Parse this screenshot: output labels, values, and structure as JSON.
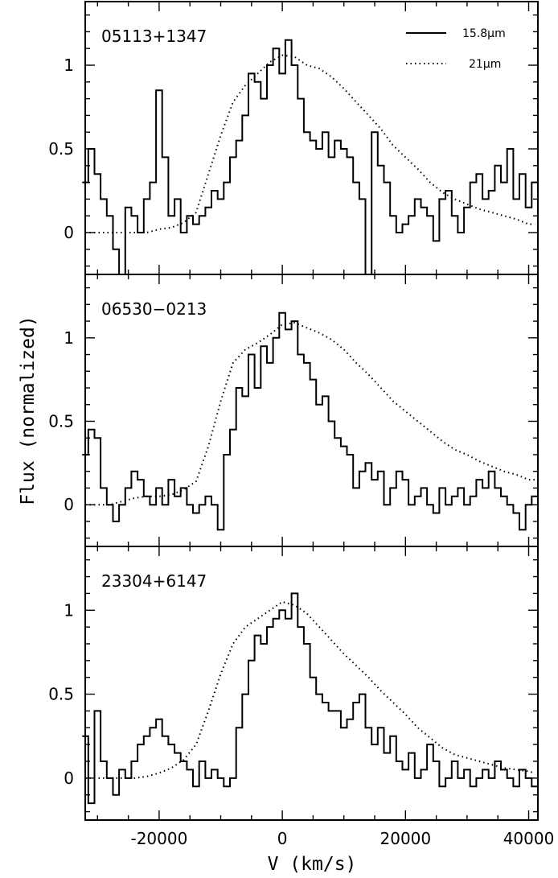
{
  "chart_data": {
    "type": "line",
    "xlabel": "V (km/s)",
    "ylabel": "Flux (normalized)",
    "xlim": [
      -32000,
      41500
    ],
    "ylim": [
      -0.25,
      1.38
    ],
    "x_ticks": [
      "-20000",
      "0",
      "20000",
      "40000"
    ],
    "y_ticks": [
      "0",
      "0.5",
      "1"
    ],
    "legend": {
      "position": "top-right",
      "entries": [
        "15.8μm",
        "21μm"
      ]
    },
    "panels": [
      {
        "name": "05113+1347",
        "series": [
          {
            "name": "15.8μm",
            "style": "solid-step",
            "x": [
              -32000,
              -31000,
              -30000,
              -29000,
              -28000,
              -27000,
              -26000,
              -25000,
              -24000,
              -23000,
              -22000,
              -21000,
              -20000,
              -19000,
              -18000,
              -17000,
              -16000,
              -15000,
              -14000,
              -13000,
              -12000,
              -11000,
              -10000,
              -9000,
              -8000,
              -7000,
              -6000,
              -5000,
              -4000,
              -3000,
              -2000,
              -1000,
              0,
              1000,
              2000,
              3000,
              4000,
              5000,
              6000,
              7000,
              8000,
              9000,
              10000,
              11000,
              12000,
              13000,
              14000,
              15000,
              16000,
              17000,
              18000,
              19000,
              20000,
              21000,
              22000,
              23000,
              24000,
              25000,
              26000,
              27000,
              28000,
              29000,
              30000,
              31000,
              32000,
              33000,
              34000,
              35000,
              36000,
              37000,
              38000,
              39000,
              40000,
              41000
            ],
            "values": [
              0.3,
              0.5,
              0.35,
              0.2,
              0.1,
              -0.1,
              -0.3,
              0.15,
              0.1,
              0.0,
              0.2,
              0.3,
              0.85,
              0.45,
              0.1,
              0.2,
              0.0,
              0.1,
              0.05,
              0.1,
              0.15,
              0.25,
              0.2,
              0.3,
              0.45,
              0.55,
              0.7,
              0.95,
              0.9,
              0.8,
              1.0,
              1.1,
              0.95,
              1.15,
              1.0,
              0.8,
              0.6,
              0.55,
              0.5,
              0.6,
              0.45,
              0.55,
              0.5,
              0.45,
              0.3,
              0.2,
              -0.25,
              0.6,
              0.4,
              0.3,
              0.1,
              0.0,
              0.05,
              0.1,
              0.2,
              0.15,
              0.1,
              -0.05,
              0.2,
              0.25,
              0.1,
              0.0,
              0.15,
              0.3,
              0.35,
              0.2,
              0.25,
              0.4,
              0.3,
              0.5,
              0.2,
              0.35,
              0.15,
              0.3
            ]
          },
          {
            "name": "21μm",
            "style": "dotted",
            "x": [
              -32000,
              -30000,
              -28000,
              -26000,
              -24000,
              -22000,
              -20000,
              -18000,
              -16000,
              -14000,
              -12000,
              -10000,
              -8000,
              -6000,
              -4000,
              -2000,
              0,
              2000,
              4000,
              6000,
              8000,
              10000,
              12000,
              14000,
              16000,
              18000,
              20000,
              22000,
              24000,
              26000,
              28000,
              30000,
              32000,
              34000,
              36000,
              38000,
              40000,
              41000
            ],
            "values": [
              0.0,
              0.0,
              0.0,
              0.0,
              0.0,
              0.0,
              0.02,
              0.03,
              0.06,
              0.12,
              0.35,
              0.58,
              0.78,
              0.88,
              0.95,
              1.02,
              1.06,
              1.05,
              1.0,
              0.98,
              0.93,
              0.86,
              0.78,
              0.7,
              0.62,
              0.52,
              0.45,
              0.38,
              0.3,
              0.24,
              0.2,
              0.17,
              0.14,
              0.12,
              0.1,
              0.08,
              0.05,
              0.05
            ]
          }
        ]
      },
      {
        "name": "06530−0213",
        "series": [
          {
            "name": "15.8μm",
            "style": "solid-step",
            "x": [
              -32000,
              -31000,
              -30000,
              -29000,
              -28000,
              -27000,
              -26000,
              -25000,
              -24000,
              -23000,
              -22000,
              -21000,
              -20000,
              -19000,
              -18000,
              -17000,
              -16000,
              -15000,
              -14000,
              -13000,
              -12000,
              -11000,
              -10000,
              -9000,
              -8000,
              -7000,
              -6000,
              -5000,
              -4000,
              -3000,
              -2000,
              -1000,
              0,
              1000,
              2000,
              3000,
              4000,
              5000,
              6000,
              7000,
              8000,
              9000,
              10000,
              11000,
              12000,
              13000,
              14000,
              15000,
              16000,
              17000,
              18000,
              19000,
              20000,
              21000,
              22000,
              23000,
              24000,
              25000,
              26000,
              27000,
              28000,
              29000,
              30000,
              31000,
              32000,
              33000,
              34000,
              35000,
              36000,
              37000,
              38000,
              39000,
              40000,
              41000
            ],
            "values": [
              0.3,
              0.45,
              0.4,
              0.1,
              0.0,
              -0.1,
              0.0,
              0.1,
              0.2,
              0.15,
              0.05,
              0.0,
              0.1,
              0.0,
              0.15,
              0.05,
              0.1,
              0.0,
              -0.05,
              0.0,
              0.05,
              0.0,
              -0.15,
              0.3,
              0.45,
              0.7,
              0.65,
              0.9,
              0.7,
              0.95,
              0.85,
              1.0,
              1.15,
              1.05,
              1.1,
              0.9,
              0.85,
              0.75,
              0.6,
              0.65,
              0.5,
              0.4,
              0.35,
              0.3,
              0.1,
              0.2,
              0.25,
              0.15,
              0.2,
              0.0,
              0.1,
              0.2,
              0.15,
              0.0,
              0.05,
              0.1,
              0.0,
              -0.05,
              0.1,
              0.0,
              0.05,
              0.1,
              0.0,
              0.05,
              0.15,
              0.1,
              0.2,
              0.1,
              0.05,
              0.0,
              -0.05,
              -0.15,
              0.0,
              0.05
            ]
          },
          {
            "name": "21μm",
            "style": "dotted",
            "x": [
              -32000,
              -30000,
              -28000,
              -26000,
              -24000,
              -22000,
              -20000,
              -18000,
              -16000,
              -14000,
              -12000,
              -10000,
              -8000,
              -6000,
              -4000,
              -2000,
              0,
              2000,
              4000,
              6000,
              8000,
              10000,
              12000,
              14000,
              16000,
              18000,
              20000,
              22000,
              24000,
              26000,
              28000,
              30000,
              32000,
              34000,
              36000,
              38000,
              40000,
              41000
            ],
            "values": [
              0.0,
              0.0,
              0.0,
              0.02,
              0.04,
              0.05,
              0.05,
              0.06,
              0.09,
              0.14,
              0.35,
              0.62,
              0.85,
              0.93,
              0.97,
              1.02,
              1.08,
              1.09,
              1.06,
              1.03,
              0.99,
              0.93,
              0.85,
              0.78,
              0.7,
              0.62,
              0.56,
              0.5,
              0.44,
              0.38,
              0.33,
              0.3,
              0.26,
              0.23,
              0.2,
              0.18,
              0.15,
              0.15
            ]
          }
        ]
      },
      {
        "name": "23304+6147",
        "series": [
          {
            "name": "15.8μm",
            "style": "solid-step",
            "x": [
              -32000,
              -31000,
              -30000,
              -29000,
              -28000,
              -27000,
              -26000,
              -25000,
              -24000,
              -23000,
              -22000,
              -21000,
              -20000,
              -19000,
              -18000,
              -17000,
              -16000,
              -15000,
              -14000,
              -13000,
              -12000,
              -11000,
              -10000,
              -9000,
              -8000,
              -7000,
              -6000,
              -5000,
              -4000,
              -3000,
              -2000,
              -1000,
              0,
              1000,
              2000,
              3000,
              4000,
              5000,
              6000,
              7000,
              8000,
              9000,
              10000,
              11000,
              12000,
              13000,
              14000,
              15000,
              16000,
              17000,
              18000,
              19000,
              20000,
              21000,
              22000,
              23000,
              24000,
              25000,
              26000,
              27000,
              28000,
              29000,
              30000,
              31000,
              32000,
              33000,
              34000,
              35000,
              36000,
              37000,
              38000,
              39000,
              40000,
              41000
            ],
            "values": [
              0.25,
              -0.15,
              0.4,
              0.1,
              0.0,
              -0.1,
              0.05,
              0.0,
              0.1,
              0.2,
              0.25,
              0.3,
              0.35,
              0.25,
              0.2,
              0.15,
              0.1,
              0.05,
              -0.05,
              0.1,
              0.0,
              0.05,
              0.0,
              -0.05,
              0.0,
              0.3,
              0.5,
              0.7,
              0.85,
              0.8,
              0.9,
              0.95,
              1.0,
              0.95,
              1.1,
              0.9,
              0.8,
              0.6,
              0.5,
              0.45,
              0.4,
              0.4,
              0.3,
              0.35,
              0.45,
              0.5,
              0.3,
              0.2,
              0.3,
              0.15,
              0.25,
              0.1,
              0.05,
              0.15,
              0.0,
              0.05,
              0.2,
              0.1,
              -0.05,
              0.0,
              0.1,
              0.0,
              0.05,
              -0.05,
              0.0,
              0.05,
              0.0,
              0.1,
              0.05,
              0.0,
              -0.05,
              0.05,
              0.0,
              -0.05
            ]
          },
          {
            "name": "21μm",
            "style": "dotted",
            "x": [
              -32000,
              -30000,
              -28000,
              -26000,
              -24000,
              -22000,
              -20000,
              -18000,
              -16000,
              -14000,
              -12000,
              -10000,
              -8000,
              -6000,
              -4000,
              -2000,
              0,
              2000,
              4000,
              6000,
              8000,
              10000,
              12000,
              14000,
              16000,
              18000,
              20000,
              22000,
              24000,
              26000,
              28000,
              30000,
              32000,
              34000,
              36000,
              38000,
              40000,
              41000
            ],
            "values": [
              0.0,
              0.0,
              0.0,
              0.0,
              0.0,
              0.01,
              0.03,
              0.06,
              0.11,
              0.2,
              0.4,
              0.62,
              0.8,
              0.9,
              0.95,
              1.0,
              1.05,
              1.03,
              0.98,
              0.9,
              0.82,
              0.74,
              0.67,
              0.6,
              0.52,
              0.45,
              0.38,
              0.3,
              0.24,
              0.18,
              0.14,
              0.12,
              0.1,
              0.08,
              0.06,
              0.05,
              0.04,
              0.03
            ]
          }
        ]
      }
    ]
  }
}
